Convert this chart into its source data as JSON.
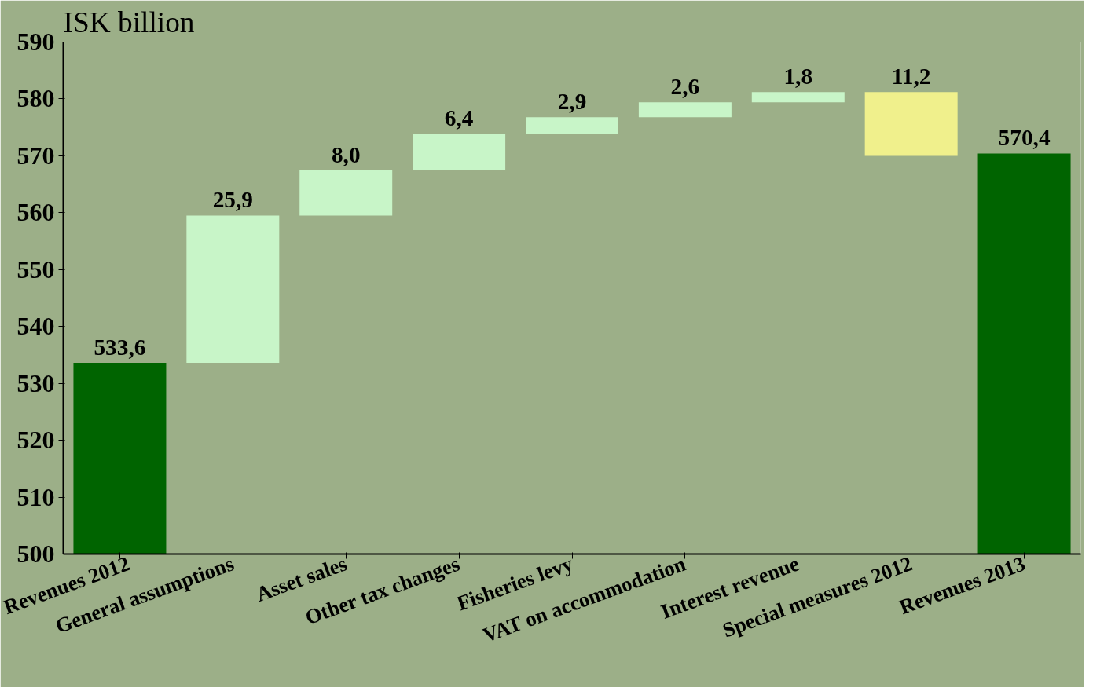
{
  "chart_data": {
    "type": "bar",
    "ylabel": "ISK billion",
    "categories": [
      "Revenues 2012",
      "General assumptions",
      "Asset sales",
      "Other tax changes",
      "Fisheries levy",
      "VAT on accommodation",
      "Interest revenue",
      "Special measures 2012",
      "Revenues 2013"
    ],
    "values": [
      533.6,
      25.9,
      8.0,
      6.4,
      2.9,
      2.6,
      1.8,
      -11.2,
      570.4
    ],
    "base": [
      null,
      533.6,
      559.5,
      567.5,
      573.9,
      576.8,
      579.4,
      581.2,
      null
    ],
    "colors": [
      "#006400",
      "#c8f5c8",
      "#c8f5c8",
      "#c8f5c8",
      "#c8f5c8",
      "#c8f5c8",
      "#c8f5c8",
      "#f0f08c",
      "#006400"
    ],
    "value_labels": [
      "533,6",
      "25,9",
      "8,0",
      "6,4",
      "2,9",
      "2,6",
      "1,8",
      "11,2",
      "570,4"
    ],
    "ylim": [
      500,
      590
    ],
    "yticks": [
      500,
      510,
      520,
      530,
      540,
      550,
      560,
      570,
      580,
      590
    ],
    "grid": false
  }
}
